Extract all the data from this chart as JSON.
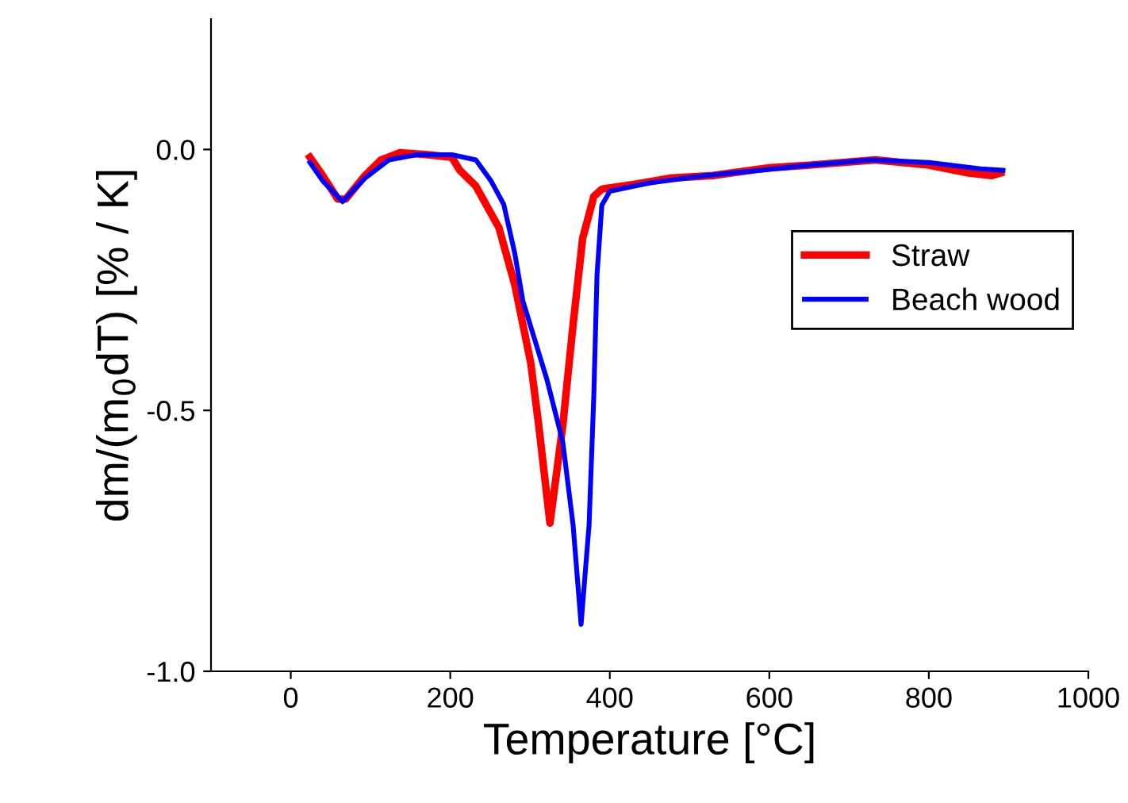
{
  "chart_data": {
    "type": "line",
    "xlabel": "Temperature [°C]",
    "ylabel": "dm/(m$_{0}$dT) [% / K]",
    "xlim": [
      -100,
      1000
    ],
    "xticks": [
      0,
      200,
      400,
      600,
      800,
      1000
    ],
    "ylim": [
      -1.0,
      0.25
    ],
    "yticks": [
      {
        "value": -1.0,
        "label": "-1.0"
      },
      {
        "value": -0.5,
        "label": "-0.5"
      },
      {
        "value": 0.0,
        "label": "0.0"
      }
    ],
    "grid": false,
    "legend": "right",
    "marker": "none",
    "line_style": "solid",
    "series": [
      {
        "name": "Straw",
        "color": "#ff0000",
        "x": [
          24,
          40,
          59,
          69,
          93,
          113,
          137,
          172,
          202,
          212,
          232,
          261,
          281,
          301,
          311,
          325,
          341,
          354,
          366,
          380,
          390,
          430,
          475,
          529,
          600,
          650,
          733,
          800,
          850,
          879,
          890
        ],
        "values": [
          -0.015,
          -0.05,
          -0.095,
          -0.095,
          -0.05,
          -0.02,
          -0.006,
          -0.01,
          -0.015,
          -0.04,
          -0.07,
          -0.15,
          -0.26,
          -0.41,
          -0.53,
          -0.716,
          -0.53,
          -0.335,
          -0.17,
          -0.09,
          -0.076,
          -0.067,
          -0.055,
          -0.05,
          -0.035,
          -0.03,
          -0.02,
          -0.03,
          -0.045,
          -0.05,
          -0.045
        ]
      },
      {
        "name": "Beach wood",
        "color": "#0000ff",
        "x": [
          24,
          40,
          65,
          93,
          123,
          158,
          202,
          232,
          251,
          267,
          281,
          291,
          311,
          321,
          341,
          354,
          364,
          374,
          380,
          384,
          390,
          400,
          450,
          520,
          588,
          650,
          727,
          800,
          865,
          893
        ],
        "values": [
          -0.025,
          -0.06,
          -0.1,
          -0.055,
          -0.02,
          -0.01,
          -0.01,
          -0.02,
          -0.06,
          -0.105,
          -0.2,
          -0.29,
          -0.39,
          -0.44,
          -0.56,
          -0.72,
          -0.91,
          -0.72,
          -0.47,
          -0.24,
          -0.107,
          -0.08,
          -0.064,
          -0.05,
          -0.04,
          -0.03,
          -0.02,
          -0.025,
          -0.037,
          -0.04
        ]
      }
    ]
  }
}
